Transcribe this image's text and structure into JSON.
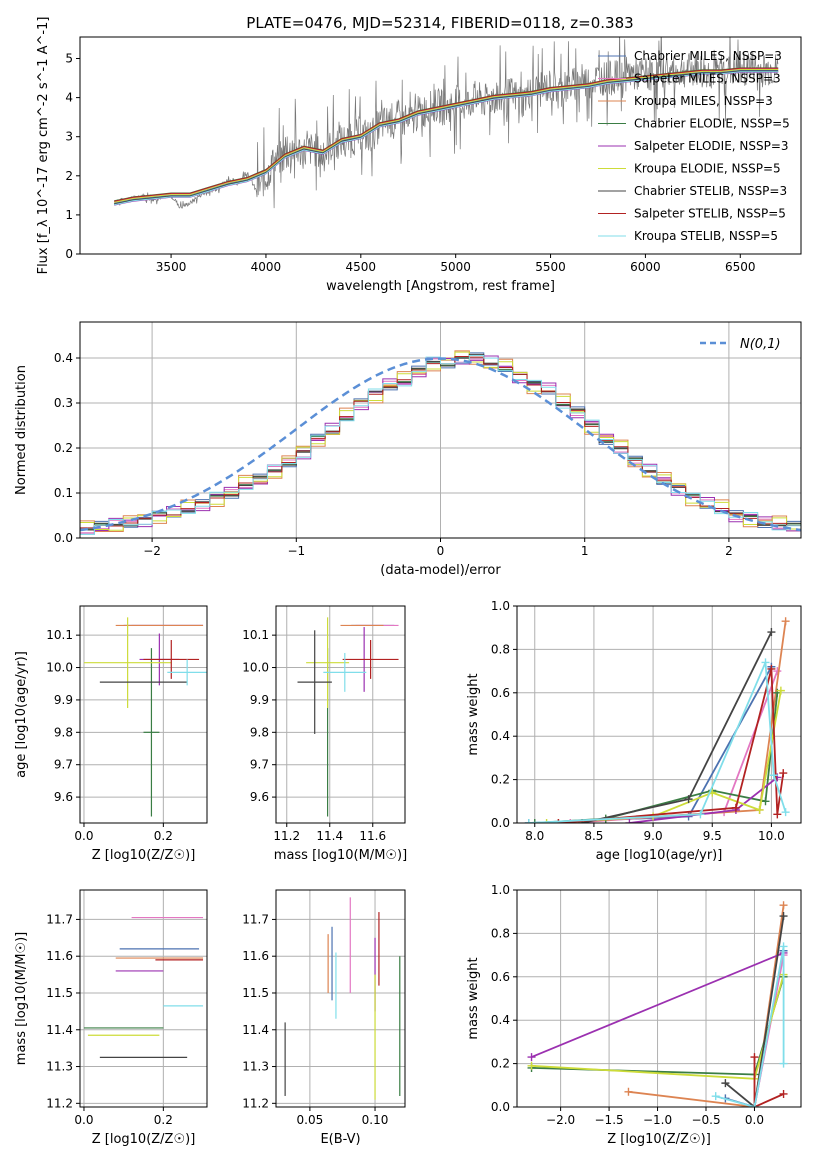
{
  "figure_title": "PLATE=0476, MJD=52314, FIBERID=0118, z=0.383",
  "models": [
    {
      "name": "Chabrier MILES, N_SSP=3",
      "color": "#4c72b0"
    },
    {
      "name": "Salpeter MILES, N_SSP=3",
      "color": "#e377c2"
    },
    {
      "name": "Kroupa MILES, N_SSP=3",
      "color": "#dd8452"
    },
    {
      "name": "Chabrier ELODIE, N_SSP=5",
      "color": "#3a7d44"
    },
    {
      "name": "Salpeter ELODIE, N_SSP=3",
      "color": "#9b30b0"
    },
    {
      "name": "Kroupa ELODIE, N_SSP=5",
      "color": "#cddc39"
    },
    {
      "name": "Chabrier STELIB, N_SSP=3",
      "color": "#444444"
    },
    {
      "name": "Salpeter STELIB, N_SSP=5",
      "color": "#b22222"
    },
    {
      "name": "Kroupa STELIB, N_SSP=5",
      "color": "#80deea"
    }
  ],
  "chart_data": [
    {
      "type": "line",
      "id": "spectrum",
      "title": "PLATE=0476, MJD=52314, FIBERID=0118, z=0.383",
      "xlabel": "wavelength [Angstrom, rest frame]",
      "ylabel": "Flux [f_λ 10^-17 erg cm^-2 s^-1 A^-1]",
      "xlim": [
        3020,
        6820
      ],
      "ylim": [
        0,
        5.55
      ],
      "xticks": [
        3500,
        4000,
        4500,
        5000,
        5500,
        6000,
        6500
      ],
      "yticks": [
        0,
        1,
        2,
        3,
        4,
        5
      ],
      "grid": false,
      "legend": "upper right",
      "data_series": {
        "name": "data",
        "color": "#777777",
        "x": [
          3200,
          3250,
          3300,
          3350,
          3400,
          3450,
          3500,
          3550,
          3600,
          3650,
          3700,
          3750,
          3800,
          3850,
          3900,
          3950,
          4000,
          4050,
          4100,
          4150,
          4200,
          4250,
          4300,
          4350,
          4400,
          4450,
          4500,
          4550,
          4600,
          4650,
          4700,
          4750,
          4800,
          4850,
          4900,
          4950,
          5000,
          5050,
          5100,
          5150,
          5200,
          5250,
          5300,
          5350,
          5400,
          5450,
          5500,
          5550,
          5600,
          5650,
          5700,
          5750,
          5800,
          5850,
          5900,
          5950,
          6000,
          6050,
          6100,
          6150,
          6200,
          6250,
          6300,
          6350,
          6400,
          6450,
          6500,
          6550,
          6600,
          6650,
          6700
        ],
        "y": [
          1.3,
          1.4,
          1.4,
          1.5,
          1.4,
          1.45,
          1.5,
          1.2,
          1.3,
          1.5,
          1.6,
          1.7,
          1.9,
          1.8,
          2.1,
          1.6,
          2.0,
          2.4,
          2.5,
          2.7,
          2.6,
          2.7,
          2.5,
          2.8,
          2.9,
          2.9,
          3.1,
          3.0,
          3.3,
          3.4,
          3.5,
          3.3,
          3.6,
          3.7,
          3.8,
          3.7,
          3.9,
          3.8,
          4.0,
          3.9,
          4.0,
          4.0,
          4.1,
          3.9,
          4.2,
          4.2,
          4.3,
          4.2,
          4.3,
          4.4,
          4.4,
          4.5,
          4.5,
          4.5,
          4.6,
          4.6,
          4.6,
          4.6,
          4.7,
          4.6,
          4.7,
          4.7,
          4.7,
          4.6,
          4.7,
          4.7,
          4.7,
          4.8,
          4.7,
          4.7,
          4.7
        ]
      },
      "model_x": [
        3200,
        3300,
        3400,
        3500,
        3600,
        3700,
        3800,
        3900,
        4000,
        4100,
        4200,
        4300,
        4400,
        4500,
        4600,
        4700,
        4800,
        4900,
        5000,
        5100,
        5200,
        5300,
        5400,
        5500,
        5600,
        5700,
        5800,
        5900,
        6000,
        6100,
        6200,
        6300,
        6400,
        6500,
        6600,
        6700
      ],
      "model_y": [
        1.3,
        1.4,
        1.45,
        1.5,
        1.5,
        1.65,
        1.8,
        1.9,
        2.1,
        2.5,
        2.7,
        2.6,
        2.9,
        3.0,
        3.3,
        3.4,
        3.6,
        3.7,
        3.8,
        3.9,
        4.0,
        4.05,
        4.1,
        4.2,
        4.25,
        4.3,
        4.4,
        4.45,
        4.5,
        4.55,
        4.6,
        4.65,
        4.65,
        4.7,
        4.7,
        4.7
      ],
      "model_offsets": [
        0.0,
        0.04,
        -0.03,
        0.06,
        -0.05,
        0.02,
        -0.02,
        0.05,
        -0.04
      ]
    },
    {
      "type": "line",
      "id": "residuals",
      "xlabel": "(data-model)/error",
      "ylabel": "Normed distribution",
      "xlim": [
        -2.5,
        2.5
      ],
      "ylim": [
        0,
        0.48
      ],
      "xticks": [
        -2,
        -1,
        0,
        1,
        2
      ],
      "yticks": [
        0.0,
        0.1,
        0.2,
        0.3,
        0.4
      ],
      "grid": true,
      "legend": "upper right",
      "legend_label": "N(0,1)",
      "hist_bins": {
        "start": -2.5,
        "width": 0.1
      },
      "hist_base": [
        0.02,
        0.025,
        0.03,
        0.035,
        0.04,
        0.05,
        0.055,
        0.065,
        0.075,
        0.09,
        0.1,
        0.12,
        0.13,
        0.15,
        0.17,
        0.19,
        0.22,
        0.24,
        0.27,
        0.3,
        0.32,
        0.34,
        0.35,
        0.37,
        0.39,
        0.39,
        0.4,
        0.4,
        0.39,
        0.38,
        0.36,
        0.34,
        0.33,
        0.3,
        0.28,
        0.25,
        0.22,
        0.2,
        0.17,
        0.15,
        0.13,
        0.11,
        0.09,
        0.075,
        0.065,
        0.05,
        0.045,
        0.035,
        0.03,
        0.025
      ],
      "hist_offsets": [
        0.012,
        -0.01,
        0.02,
        -0.006,
        0.015,
        -0.015,
        0.008,
        0.004,
        -0.012
      ]
    },
    {
      "type": "scatter",
      "id": "age-vs-Z",
      "xlabel": "Z [log10(Z/Z☉)]",
      "ylabel": "age [log10(age/yr)]",
      "xlim": [
        -0.01,
        0.31
      ],
      "ylim": [
        9.52,
        10.19
      ],
      "xticks": [
        0.0,
        0.2
      ],
      "yticks": [
        9.6,
        9.7,
        9.8,
        9.9,
        10.0,
        10.1
      ],
      "grid": true,
      "points": [
        {
          "x": 0.2,
          "y": 10.13,
          "ex": 0.1,
          "ey": 0.0,
          "color": "#4c72b0"
        },
        {
          "x": 0.21,
          "y": 10.13,
          "ex": 0.09,
          "ey": 0.0,
          "color": "#e377c2"
        },
        {
          "x": 0.19,
          "y": 10.13,
          "ex": 0.11,
          "ey": 0.0,
          "color": "#dd8452"
        },
        {
          "x": 0.17,
          "y": 9.8,
          "ex": 0.02,
          "ey": 0.26,
          "color": "#3a7d44"
        },
        {
          "x": 0.19,
          "y": 10.025,
          "ex": 0.05,
          "ey": 0.08,
          "color": "#9b30b0"
        },
        {
          "x": 0.11,
          "y": 10.015,
          "ex": 0.11,
          "ey": 0.14,
          "color": "#cddc39"
        },
        {
          "x": 0.15,
          "y": 9.955,
          "ex": 0.11,
          "ey": 0.0,
          "color": "#444444"
        },
        {
          "x": 0.22,
          "y": 10.025,
          "ex": 0.07,
          "ey": 0.06,
          "color": "#b22222"
        },
        {
          "x": 0.26,
          "y": 9.985,
          "ex": 0.05,
          "ey": 0.04,
          "color": "#80deea"
        }
      ]
    },
    {
      "type": "scatter",
      "id": "age-vs-mass",
      "xlabel": "mass [log10(M/M☉)]",
      "ylabel": "",
      "xlim": [
        11.15,
        11.75
      ],
      "ylim": [
        9.52,
        10.19
      ],
      "xticks": [
        11.2,
        11.4,
        11.6
      ],
      "yticks": [
        9.6,
        9.7,
        9.8,
        9.9,
        10.0,
        10.1
      ],
      "grid": true,
      "points": [
        {
          "x": 11.6,
          "y": 10.13,
          "ex": 0.1,
          "ey": 0.0,
          "color": "#4c72b0"
        },
        {
          "x": 11.62,
          "y": 10.13,
          "ex": 0.1,
          "ey": 0.0,
          "color": "#e377c2"
        },
        {
          "x": 11.55,
          "y": 10.13,
          "ex": 0.1,
          "ey": 0.0,
          "color": "#dd8452"
        },
        {
          "x": 11.39,
          "y": 9.8,
          "ex": 0.0,
          "ey": 0.26,
          "color": "#3a7d44"
        },
        {
          "x": 11.56,
          "y": 10.025,
          "ex": 0.0,
          "ey": 0.1,
          "color": "#9b30b0"
        },
        {
          "x": 11.39,
          "y": 10.015,
          "ex": 0.1,
          "ey": 0.14,
          "color": "#cddc39"
        },
        {
          "x": 11.33,
          "y": 9.955,
          "ex": 0.08,
          "ey": 0.16,
          "color": "#444444"
        },
        {
          "x": 11.59,
          "y": 10.025,
          "ex": 0.13,
          "ey": 0.06,
          "color": "#b22222"
        },
        {
          "x": 11.47,
          "y": 9.985,
          "ex": 0.1,
          "ey": 0.06,
          "color": "#80deea"
        }
      ]
    },
    {
      "type": "line",
      "id": "mass-weight-vs-age",
      "xlabel": "age [log10(age/yr)]",
      "ylabel": "mass weight",
      "xlim": [
        7.85,
        10.25
      ],
      "ylim": [
        0,
        1.0
      ],
      "xticks": [
        8.0,
        8.5,
        9.0,
        9.5,
        10.0
      ],
      "yticks": [
        0.0,
        0.2,
        0.4,
        0.6,
        0.8,
        1.0
      ],
      "grid": true,
      "series": [
        {
          "name": "Chabrier MILES, N_SSP=3",
          "color": "#4c72b0",
          "x": [
            7.95,
            9.3,
            10.0
          ],
          "y": [
            0.0,
            0.03,
            0.72
          ]
        },
        {
          "name": "Salpeter MILES, N_SSP=3",
          "color": "#e377c2",
          "x": [
            8.3,
            9.6,
            10.05
          ],
          "y": [
            0.0,
            0.05,
            0.7
          ]
        },
        {
          "name": "Kroupa MILES, N_SSP=3",
          "color": "#dd8452",
          "x": [
            8.2,
            9.9,
            10.12
          ],
          "y": [
            0.0,
            0.06,
            0.93
          ]
        },
        {
          "name": "Chabrier ELODIE, N_SSP=5",
          "color": "#3a7d44",
          "x": [
            8.0,
            8.6,
            9.5,
            9.95,
            10.05
          ],
          "y": [
            0.0,
            0.02,
            0.15,
            0.1,
            0.6
          ]
        },
        {
          "name": "Salpeter ELODIE, N_SSP=3",
          "color": "#9b30b0",
          "x": [
            8.8,
            9.7,
            10.05
          ],
          "y": [
            0.0,
            0.06,
            0.21
          ]
        },
        {
          "name": "Kroupa ELODIE, N_SSP=5",
          "color": "#cddc39",
          "x": [
            8.1,
            9.0,
            9.5,
            9.9,
            10.08
          ],
          "y": [
            0.0,
            0.03,
            0.14,
            0.06,
            0.61
          ]
        },
        {
          "name": "Chabrier STELIB, N_SSP=3",
          "color": "#444444",
          "x": [
            8.4,
            9.3,
            10.0
          ],
          "y": [
            0.0,
            0.11,
            0.88
          ]
        },
        {
          "name": "Salpeter STELIB, N_SSP=5",
          "color": "#b22222",
          "x": [
            8.2,
            9.7,
            10.0,
            10.05,
            10.1
          ],
          "y": [
            0.0,
            0.07,
            0.71,
            0.04,
            0.23
          ]
        },
        {
          "name": "Kroupa STELIB, N_SSP=5",
          "color": "#80deea",
          "x": [
            7.95,
            9.4,
            9.95,
            10.02,
            10.12
          ],
          "y": [
            0.0,
            0.04,
            0.74,
            0.22,
            0.05
          ]
        }
      ]
    },
    {
      "type": "scatter",
      "id": "mass-vs-Z",
      "xlabel": "Z [log10(Z/Z☉)]",
      "ylabel": "mass [log10(M/M☉)]",
      "xlim": [
        -0.01,
        0.31
      ],
      "ylim": [
        11.19,
        11.78
      ],
      "xticks": [
        0.0,
        0.2
      ],
      "yticks": [
        11.2,
        11.3,
        11.4,
        11.5,
        11.6,
        11.7
      ],
      "grid": true,
      "points": [
        {
          "x": 0.19,
          "y": 11.62,
          "ex": 0.1,
          "ey": 0.0,
          "color": "#4c72b0"
        },
        {
          "x": 0.21,
          "y": 11.705,
          "ex": 0.09,
          "ey": 0.0,
          "color": "#e377c2"
        },
        {
          "x": 0.19,
          "y": 11.595,
          "ex": 0.11,
          "ey": 0.0,
          "color": "#dd8452"
        },
        {
          "x": 0.1,
          "y": 11.405,
          "ex": 0.1,
          "ey": 0.0,
          "color": "#3a7d44"
        },
        {
          "x": 0.14,
          "y": 11.56,
          "ex": 0.06,
          "ey": 0.0,
          "color": "#9b30b0"
        },
        {
          "x": 0.1,
          "y": 11.385,
          "ex": 0.09,
          "ey": 0.0,
          "color": "#cddc39"
        },
        {
          "x": 0.15,
          "y": 11.325,
          "ex": 0.11,
          "ey": 0.0,
          "color": "#444444"
        },
        {
          "x": 0.24,
          "y": 11.59,
          "ex": 0.06,
          "ey": 0.0,
          "color": "#b22222"
        },
        {
          "x": 0.25,
          "y": 11.465,
          "ex": 0.05,
          "ey": 0.0,
          "color": "#80deea"
        }
      ]
    },
    {
      "type": "scatter",
      "id": "mass-vs-EBV",
      "xlabel": "E(B-V)",
      "ylabel": "",
      "xlim": [
        0.024,
        0.123
      ],
      "ylim": [
        11.19,
        11.78
      ],
      "xticks": [
        0.05,
        0.1
      ],
      "yticks": [
        11.2,
        11.3,
        11.4,
        11.5,
        11.6,
        11.7
      ],
      "grid": true,
      "points": [
        {
          "x": 0.067,
          "y": 11.58,
          "ey": 0.1,
          "color": "#4c72b0"
        },
        {
          "x": 0.081,
          "y": 11.63,
          "ey": 0.13,
          "color": "#e377c2"
        },
        {
          "x": 0.064,
          "y": 11.58,
          "ey": 0.08,
          "color": "#dd8452"
        },
        {
          "x": 0.119,
          "y": 11.41,
          "ey": 0.19,
          "color": "#3a7d44"
        },
        {
          "x": 0.1,
          "y": 11.55,
          "ey": 0.1,
          "color": "#9b30b0"
        },
        {
          "x": 0.1,
          "y": 11.38,
          "ey": 0.17,
          "color": "#cddc39"
        },
        {
          "x": 0.031,
          "y": 11.32,
          "ey": 0.1,
          "color": "#444444"
        },
        {
          "x": 0.103,
          "y": 11.62,
          "ey": 0.1,
          "color": "#b22222"
        },
        {
          "x": 0.07,
          "y": 11.52,
          "ey": 0.09,
          "color": "#80deea"
        }
      ]
    },
    {
      "type": "line",
      "id": "mass-weight-vs-Z",
      "xlabel": "Z [log10(Z/Z☉)]",
      "ylabel": "mass weight",
      "xlim": [
        -2.45,
        0.48
      ],
      "ylim": [
        0,
        1.0
      ],
      "xticks": [
        -2.0,
        -1.5,
        -1.0,
        -0.5,
        0.0
      ],
      "yticks": [
        0.0,
        0.2,
        0.4,
        0.6,
        0.8,
        1.0
      ],
      "grid": true,
      "series": [
        {
          "name": "Chabrier MILES, N_SSP=3",
          "color": "#4c72b0",
          "x": [
            -0.3,
            0.0,
            0.3
          ],
          "y": [
            0.04,
            0.0,
            0.72
          ]
        },
        {
          "name": "Salpeter MILES, N_SSP=3",
          "color": "#e377c2",
          "x": [
            0.0,
            0.3
          ],
          "y": [
            0.0,
            0.7
          ]
        },
        {
          "name": "Kroupa MILES, N_SSP=3",
          "color": "#dd8452",
          "x": [
            -1.3,
            0.0,
            0.3
          ],
          "y": [
            0.07,
            0.0,
            0.93
          ]
        },
        {
          "name": "Chabrier ELODIE, N_SSP=5",
          "color": "#3a7d44",
          "x": [
            -2.3,
            0.0,
            0.3
          ],
          "y": [
            0.18,
            0.15,
            0.6
          ]
        },
        {
          "name": "Salpeter ELODIE, N_SSP=3",
          "color": "#9b30b0",
          "x": [
            -2.3,
            0.3
          ],
          "y": [
            0.23,
            0.71
          ]
        },
        {
          "name": "Kroupa ELODIE, N_SSP=5",
          "color": "#cddc39",
          "x": [
            -2.3,
            0.0,
            0.3
          ],
          "y": [
            0.19,
            0.13,
            0.61
          ]
        },
        {
          "name": "Chabrier STELIB, N_SSP=3",
          "color": "#444444",
          "x": [
            -0.3,
            0.0,
            0.3
          ],
          "y": [
            0.11,
            0.0,
            0.88
          ]
        },
        {
          "name": "Salpeter STELIB, N_SSP=5",
          "color": "#b22222",
          "x": [
            0.0,
            0.0,
            0.3
          ],
          "y": [
            0.23,
            0.0,
            0.06
          ]
        },
        {
          "name": "Kroupa STELIB, N_SSP=5",
          "color": "#80deea",
          "x": [
            -0.4,
            0.0,
            0.3,
            0.3
          ],
          "y": [
            0.05,
            0.0,
            0.74,
            0.2
          ]
        }
      ]
    }
  ]
}
